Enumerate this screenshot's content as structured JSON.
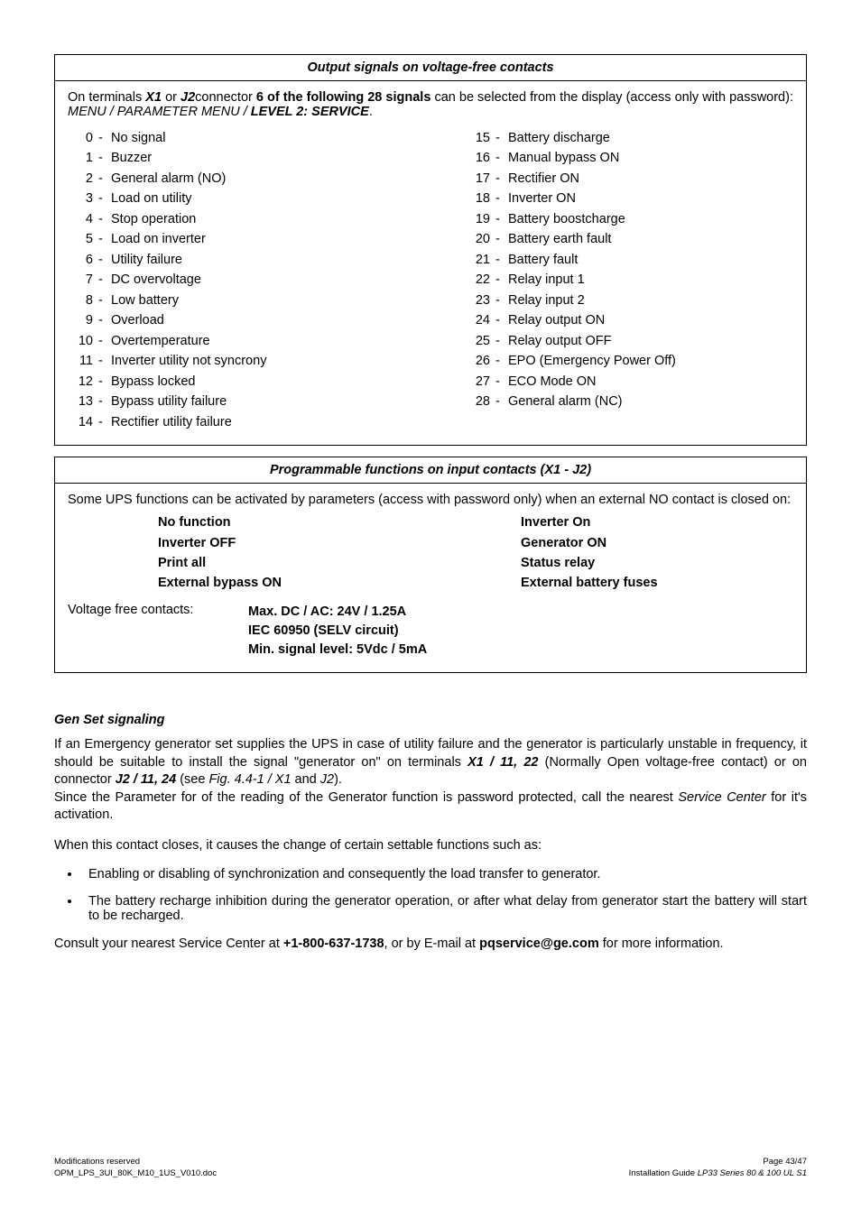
{
  "box1": {
    "title": "Output signals on voltage-free contacts",
    "intro_pre": "On terminals ",
    "intro_t1": "X1",
    "intro_mid1": " or ",
    "intro_t2": "J2",
    "intro_mid2": "connector ",
    "intro_bold": "6 of the following 28 signals",
    "intro_after": " can be selected from the display (access only with password): ",
    "intro_menupath": "MENU / PARAMETER MENU / ",
    "intro_level": "LEVEL 2: SERVICE",
    "intro_end": ".",
    "signals_left": [
      {
        "n": "0",
        "d": "-",
        "label": "No signal"
      },
      {
        "n": "1",
        "d": "-",
        "label": "Buzzer"
      },
      {
        "n": "2",
        "d": "-",
        "label": "General alarm (NO)"
      },
      {
        "n": "3",
        "d": "-",
        "label": "Load on utility"
      },
      {
        "n": "4",
        "d": "-",
        "label": "Stop operation"
      },
      {
        "n": "5",
        "d": "-",
        "label": "Load on inverter"
      },
      {
        "n": "6",
        "d": "-",
        "label": "Utility failure"
      },
      {
        "n": "7",
        "d": "-",
        "label": "DC overvoltage"
      },
      {
        "n": "8",
        "d": "-",
        "label": "Low battery"
      },
      {
        "n": "9",
        "d": "-",
        "label": "Overload"
      },
      {
        "n": "10",
        "d": "-",
        "label": "Overtemperature"
      },
      {
        "n": "11",
        "d": "-",
        "label": "Inverter utility not syncrony"
      },
      {
        "n": "12",
        "d": "-",
        "label": "Bypass locked"
      },
      {
        "n": "13",
        "d": "-",
        "label": "Bypass utility failure"
      },
      {
        "n": "14",
        "d": "-",
        "label": "Rectifier utility failure"
      }
    ],
    "signals_right": [
      {
        "n": "15",
        "d": "-",
        "label": "Battery discharge"
      },
      {
        "n": "16",
        "d": "-",
        "label": "Manual bypass ON"
      },
      {
        "n": "17",
        "d": "-",
        "label": "Rectifier ON"
      },
      {
        "n": "18",
        "d": "-",
        "label": "Inverter ON"
      },
      {
        "n": "19",
        "d": "-",
        "label": "Battery boostcharge"
      },
      {
        "n": "20",
        "d": "-",
        "label": "Battery earth fault"
      },
      {
        "n": "21",
        "d": "-",
        "label": "Battery fault"
      },
      {
        "n": "22",
        "d": "-",
        "label": "Relay input 1"
      },
      {
        "n": "23",
        "d": "-",
        "label": "Relay input 2"
      },
      {
        "n": "24",
        "d": "-",
        "label": "Relay output ON"
      },
      {
        "n": "25",
        "d": "-",
        "label": "Relay output OFF"
      },
      {
        "n": "26",
        "d": "-",
        "label": "EPO (Emergency Power Off)"
      },
      {
        "n": "27",
        "d": "-",
        "label": "ECO Mode ON"
      },
      {
        "n": "28",
        "d": "-",
        "label": "General alarm (NC)"
      }
    ]
  },
  "box2": {
    "title": "Programmable functions on input contacts (X1 - J2)",
    "intro": "Some UPS functions can be activated by parameters (access with password only) when an external NO contact is closed on:",
    "funcs_left": [
      "No function",
      "Inverter OFF",
      "Print all",
      "External bypass ON"
    ],
    "funcs_right": [
      "Inverter On",
      "Generator ON",
      "Status relay",
      "External battery fuses"
    ],
    "vfc_label": "Voltage free contacts:",
    "vfc_specs": [
      "Max. DC / AC: 24V / 1.25A",
      "IEC 60950 (SELV circuit)",
      "Min. signal level: 5Vdc / 5mA"
    ]
  },
  "genset": {
    "heading": "Gen Set signaling",
    "p1_a": "If an Emergency generator set supplies the UPS in case of utility failure and the generator is particularly unstable in frequency, it should be suitable to install the signal \"generator on\" on terminals ",
    "p1_b": "X1 / 11, 22",
    "p1_c": " (Normally Open voltage-free contact) or on connector ",
    "p1_d": "J2 / 11, 24",
    "p1_e": " (see ",
    "p1_f": "Fig. 4.4-1 / X1",
    "p1_g": " and ",
    "p1_h": "J2",
    "p1_i": ").",
    "p1_line2a": "Since the Parameter for of the reading of the Generator function is password protected, call the nearest ",
    "p1_line2b": "Service Center",
    "p1_line2c": " for it's activation.",
    "p2": "When this contact closes, it causes the change of certain settable functions such as:",
    "bullets": [
      "Enabling or disabling of synchronization and consequently the load transfer to generator.",
      "The battery recharge inhibition during the generator operation, or after what delay from generator start the battery will start to be recharged."
    ],
    "p3_a": "Consult your nearest Service Center at ",
    "p3_b": "+1-800-637-1738",
    "p3_c": ", or by E-mail at ",
    "p3_d": "pqservice@ge.com",
    "p3_e": " for more information."
  },
  "footer": {
    "left1": "Modifications reserved",
    "left2": "OPM_LPS_3UI_80K_M10_1US_V010.doc",
    "right1": "Page 43/47",
    "right2a": "Installation Guide ",
    "right2b": "LP33 Series 80 & 100 UL S1"
  }
}
